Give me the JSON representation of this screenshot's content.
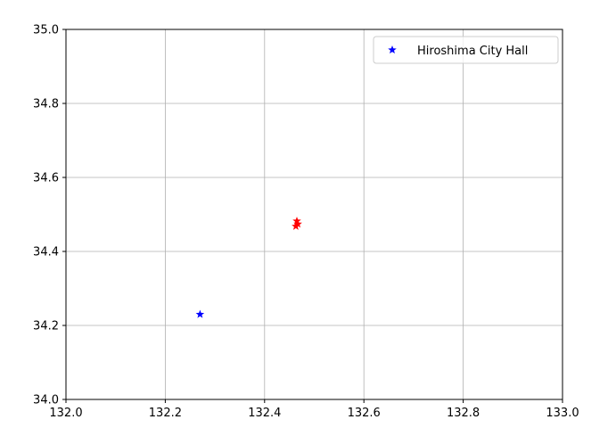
{
  "chart_data": {
    "type": "scatter",
    "title": "",
    "xlabel": "",
    "ylabel": "",
    "xlim": [
      132.0,
      133.0
    ],
    "ylim": [
      34.0,
      35.0
    ],
    "grid": true,
    "legend_position": "top-right",
    "x_ticks": [
      "132.0",
      "132.2",
      "132.4",
      "132.6",
      "132.8",
      "133.0"
    ],
    "x_tick_values": [
      132.0,
      132.2,
      132.4,
      132.6,
      132.8,
      133.0
    ],
    "y_ticks": [
      "34.0",
      "34.2",
      "34.4",
      "34.6",
      "34.8",
      "35.0"
    ],
    "y_tick_values": [
      34.0,
      34.2,
      34.4,
      34.6,
      34.8,
      35.0
    ],
    "series": [
      {
        "name": "Hiroshima City Hall",
        "color": "#0000ff",
        "marker": "star",
        "points": [
          {
            "x": 132.27,
            "y": 34.23
          }
        ]
      },
      {
        "color": "#ff0000",
        "marker": "star",
        "points": [
          {
            "x": 132.465,
            "y": 34.482
          },
          {
            "x": 132.467,
            "y": 34.474
          },
          {
            "x": 132.463,
            "y": 34.468
          }
        ]
      }
    ]
  }
}
